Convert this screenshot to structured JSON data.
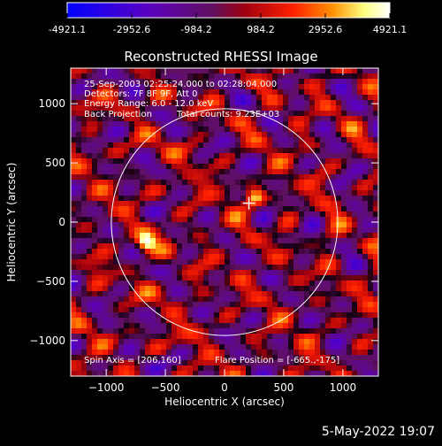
{
  "title": "Reconstructed RHESSI Image",
  "info": {
    "time_range": "25-Sep-2003 02:25:24.000 to 02:28:04.000",
    "detectors": "Detectors: 7F 8F 9F, Att 0",
    "energy": "Energy Range: 6.0 - 12.0 keV",
    "method": "Back Projection",
    "counts": "Total counts: 9.23E+03",
    "spin_axis": "Spin Axis = [206,160]",
    "flare_position": "Flare Position = [-665.,-175]"
  },
  "footer_date": "5-May-2022 19:07",
  "colorbar": {
    "ticks": [
      "-4921.1",
      "-2952.6",
      "-984.2",
      "984.2",
      "2952.6",
      "4921.1"
    ],
    "tick_values": [
      -4921.1,
      -2952.6,
      -984.2,
      984.2,
      2952.6,
      4921.1
    ],
    "range": [
      -4921.1,
      4921.1
    ],
    "colors": [
      "#0000ff",
      "#5a00c0",
      "#601060",
      "#a00010",
      "#ff2000",
      "#ff9000",
      "#ffff80",
      "#ffffff"
    ]
  },
  "chart_data": {
    "type": "heatmap",
    "title": "Reconstructed RHESSI Image",
    "xlabel": "Heliocentric X (arcsec)",
    "ylabel": "Heliocentric Y (arcsec)",
    "xlim": [
      -1300,
      1300
    ],
    "ylim": [
      -1300,
      1300
    ],
    "x_ticks": [
      -1000,
      -500,
      0,
      500,
      1000
    ],
    "y_ticks": [
      -1000,
      -500,
      0,
      500,
      1000
    ],
    "x_tick_labels": [
      "−1000",
      "−500",
      "0",
      "500",
      "1000"
    ],
    "y_tick_labels": [
      "−1000",
      "−500",
      "0",
      "500",
      "1000"
    ],
    "solar_limb_radius": 957,
    "marker_position": [
      206,
      160
    ],
    "bright_sources": [
      {
        "x": -665,
        "y": -175,
        "value": 4921
      },
      {
        "x": 260,
        "y": 210,
        "value": 3800
      }
    ],
    "colormap_min": -4921.1,
    "colormap_max": 4921.1
  }
}
